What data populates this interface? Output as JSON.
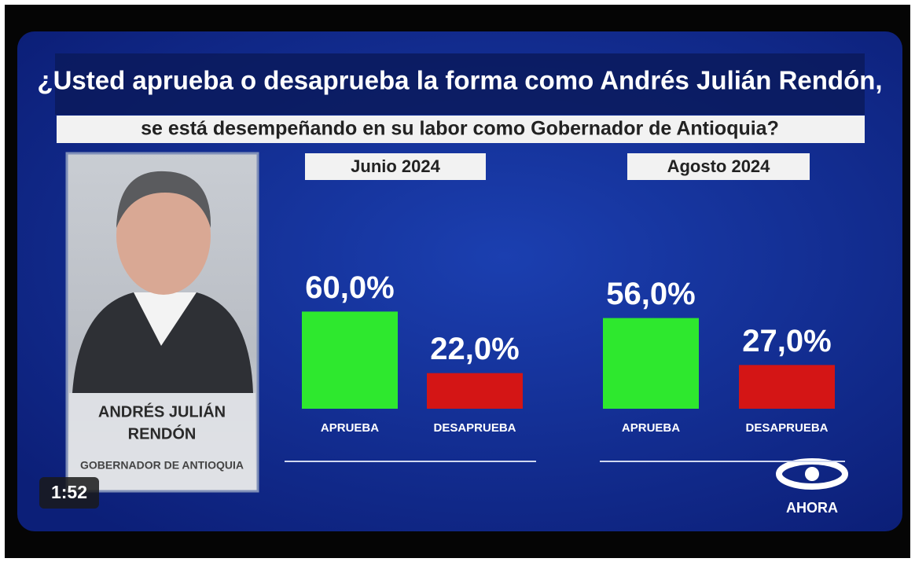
{
  "question": [
    "¿Usted aprueba o desaprueba la forma como Andrés Julián Rendón,",
    "se está desempeñando en su labor como Gobernador de Antioquia?"
  ],
  "person": {
    "name": [
      "ANDRÉS JULIÁN",
      "RENDÓN"
    ],
    "role": "GOBERNADOR DE ANTIOQUIA"
  },
  "logo": "AHORA",
  "timestamp": "1:52",
  "chart_data": [
    {
      "type": "bar",
      "title": "Junio 2024",
      "categories": [
        "APRUEBA",
        "DESAPRUEBA"
      ],
      "values": [
        60,
        22
      ],
      "value_labels": [
        "60,0%",
        "22,0%"
      ],
      "colors": [
        "#2ee82e",
        "#d41515"
      ]
    },
    {
      "type": "bar",
      "title": "Agosto 2024",
      "categories": [
        "APRUEBA",
        "DESAPRUEBA"
      ],
      "values": [
        56,
        27
      ],
      "value_labels": [
        "56,0%",
        "27,0%"
      ],
      "colors": [
        "#2ee82e",
        "#d41515"
      ]
    }
  ]
}
